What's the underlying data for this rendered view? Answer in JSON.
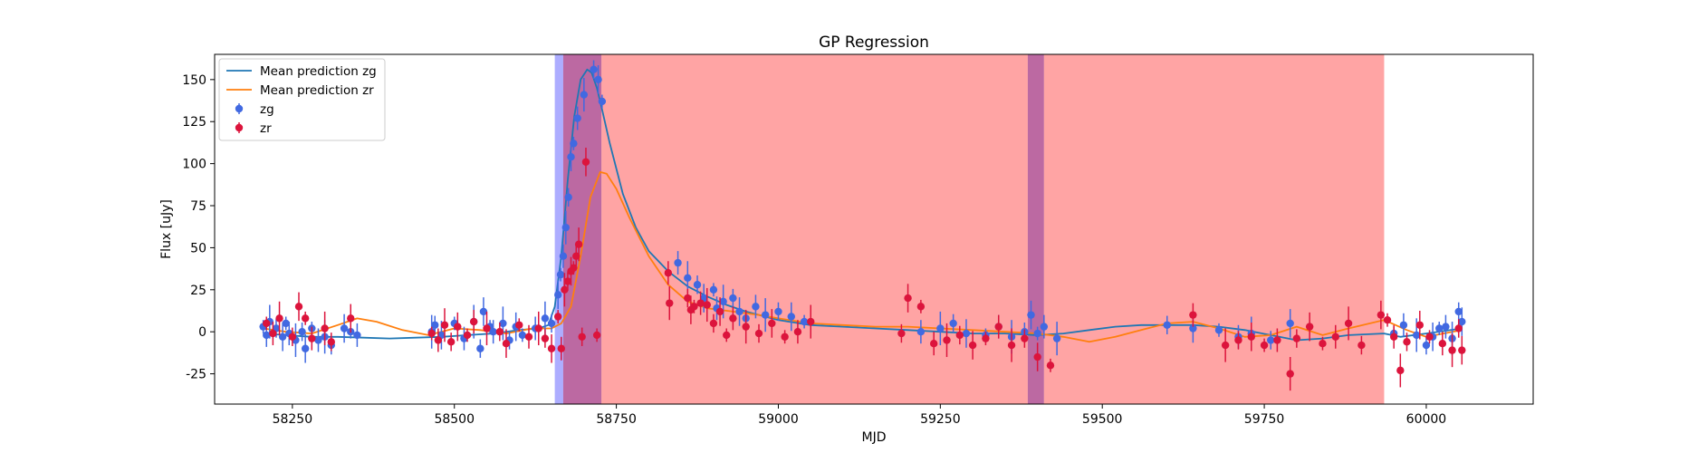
{
  "chart_data": {
    "type": "line",
    "title": "GP Regression",
    "xlabel": "MJD",
    "ylabel": "Flux [uJy]",
    "xlim": [
      58130,
      60165
    ],
    "ylim": [
      -43,
      165
    ],
    "xticks": [
      58250,
      58500,
      58750,
      59000,
      59250,
      59500,
      59750,
      60000
    ],
    "yticks": [
      -25,
      0,
      25,
      50,
      75,
      100,
      125,
      150
    ],
    "grid": false,
    "legend_position": "top-left",
    "shaded_regions": [
      {
        "x": [
          58655,
          58668
        ],
        "color": "#5b5bff",
        "alpha": 0.5
      },
      {
        "x": [
          58668,
          58727
        ],
        "color": "#a02a7a",
        "alpha": 0.7
      },
      {
        "x": [
          58727,
          59385
        ],
        "color": "#ff5a5a",
        "alpha": 0.55
      },
      {
        "x": [
          59385,
          59410
        ],
        "color": "#a02a7a",
        "alpha": 0.7
      },
      {
        "x": [
          59410,
          59935
        ],
        "color": "#ff5a5a",
        "alpha": 0.55
      }
    ],
    "series": [
      {
        "name": "Mean prediction zg",
        "kind": "line",
        "color": "#1f77b4",
        "x": [
          58205,
          58240,
          58280,
          58320,
          58360,
          58400,
          58440,
          58480,
          58520,
          58560,
          58600,
          58630,
          58645,
          58655,
          58665,
          58675,
          58685,
          58695,
          58705,
          58712,
          58720,
          58728,
          58740,
          58760,
          58780,
          58800,
          58830,
          58860,
          58890,
          58920,
          58950,
          58980,
          59000,
          59050,
          59100,
          59150,
          59200,
          59250,
          59300,
          59350,
          59400,
          59440,
          59480,
          59520,
          59560,
          59600,
          59640,
          59680,
          59720,
          59760,
          59800,
          59840,
          59880,
          59935,
          59960,
          60000,
          60055
        ],
        "y": [
          -1,
          -2,
          -3,
          -3,
          -3.5,
          -4,
          -3.5,
          -3,
          -2,
          -1,
          1,
          2,
          4,
          15,
          45,
          90,
          128,
          150,
          156,
          154,
          145,
          132,
          112,
          82,
          62,
          48,
          36,
          27,
          21,
          16,
          12,
          9,
          7,
          4,
          3,
          2,
          1,
          0,
          -1,
          -1,
          -2,
          -1,
          1,
          3,
          4,
          4,
          4,
          3,
          1,
          -2,
          -5,
          -4,
          -2,
          -1,
          -3,
          -1,
          2
        ]
      },
      {
        "name": "Mean prediction zr",
        "kind": "line",
        "color": "#ff7f0e",
        "x": [
          58205,
          58240,
          58280,
          58320,
          58350,
          58380,
          58420,
          58460,
          58500,
          58540,
          58580,
          58620,
          58650,
          58665,
          58680,
          58695,
          58710,
          58725,
          58735,
          58750,
          58770,
          58800,
          58830,
          58860,
          58890,
          58930,
          58970,
          59000,
          59050,
          59100,
          59150,
          59200,
          59250,
          59300,
          59350,
          59400,
          59440,
          59480,
          59520,
          59560,
          59600,
          59640,
          59680,
          59720,
          59760,
          59800,
          59840,
          59880,
          59935,
          59970,
          60000,
          60055
        ],
        "y": [
          2,
          0,
          -1,
          4,
          8,
          6,
          1,
          -2,
          2,
          1,
          -1,
          2,
          2,
          5,
          15,
          45,
          80,
          95,
          94,
          85,
          68,
          45,
          28,
          18,
          14,
          12,
          10,
          8,
          5,
          4,
          3,
          3,
          2,
          1,
          0,
          -1,
          -3,
          -6,
          -3,
          1,
          5,
          6,
          2,
          -3,
          -2,
          3,
          -2,
          2,
          7,
          1,
          -3,
          1
        ]
      },
      {
        "name": "zg",
        "kind": "errorbar",
        "color": "#4169e1",
        "x": [
          58205,
          58210,
          58215,
          58225,
          58235,
          58240,
          58245,
          58255,
          58265,
          58270,
          58280,
          58290,
          58300,
          58310,
          58330,
          58340,
          58350,
          58465,
          58470,
          58480,
          58500,
          58515,
          58530,
          58540,
          58545,
          58555,
          58560,
          58575,
          58585,
          58595,
          58605,
          58625,
          58640,
          58650,
          58660,
          58664,
          58668,
          58672,
          58676,
          58680,
          58684,
          58690,
          58700,
          58715,
          58722,
          58728,
          58845,
          58860,
          58875,
          58885,
          58900,
          58905,
          58915,
          58930,
          58940,
          58950,
          58965,
          58980,
          59000,
          59020,
          59040,
          59220,
          59250,
          59270,
          59290,
          59320,
          59340,
          59360,
          59380,
          59390,
          59400,
          59410,
          59430,
          59600,
          59640,
          59680,
          59710,
          59730,
          59760,
          59790,
          59950,
          59965,
          59985,
          60000,
          60010,
          60020,
          60030,
          60040,
          60050,
          60055
        ],
        "y": [
          3,
          -2,
          6,
          2,
          -3,
          5,
          -1,
          -5,
          0,
          -10,
          2,
          -5,
          -3,
          -8,
          2,
          0,
          -2,
          0,
          4,
          -2,
          5,
          -4,
          6,
          -10,
          12,
          3,
          0,
          5,
          -5,
          3,
          -2,
          2,
          8,
          5,
          22,
          34,
          45,
          62,
          80,
          104,
          112,
          127,
          141,
          156,
          150,
          137,
          41,
          32,
          28,
          20,
          25,
          14,
          18,
          20,
          12,
          8,
          15,
          10,
          12,
          9,
          6,
          0,
          2,
          5,
          -1,
          -2,
          3,
          -3,
          0,
          10,
          -1,
          3,
          -4,
          4,
          2,
          1,
          -3,
          -1,
          -5,
          5,
          -1,
          4,
          -2,
          -8,
          -3,
          2,
          3,
          -4,
          12,
          6
        ]
      },
      {
        "name": "zr",
        "kind": "errorbar",
        "color": "#dc143c",
        "x": [
          58210,
          58220,
          58230,
          58250,
          58260,
          58270,
          58280,
          58300,
          58310,
          58340,
          58465,
          58475,
          58485,
          58495,
          58505,
          58520,
          58530,
          58550,
          58570,
          58580,
          58600,
          58615,
          58630,
          58640,
          58650,
          58660,
          58665,
          58670,
          58675,
          58680,
          58684,
          58688,
          58692,
          58697,
          58703,
          58720,
          58830,
          58832,
          58860,
          58865,
          58870,
          58880,
          58890,
          58900,
          58910,
          58920,
          58930,
          58950,
          58970,
          58990,
          59010,
          59030,
          59050,
          59190,
          59200,
          59220,
          59240,
          59260,
          59280,
          59300,
          59320,
          59340,
          59360,
          59380,
          59400,
          59420,
          59640,
          59690,
          59710,
          59730,
          59750,
          59770,
          59790,
          59800,
          59820,
          59840,
          59860,
          59880,
          59900,
          59930,
          59940,
          59950,
          59960,
          59970,
          59990,
          60005,
          60025,
          60040,
          60050,
          60055
        ],
        "y": [
          5,
          -1,
          8,
          -3,
          15,
          8,
          -4,
          2,
          -6,
          8,
          -1,
          -5,
          4,
          -6,
          3,
          -2,
          6,
          2,
          0,
          -7,
          4,
          -3,
          2,
          -4,
          -10,
          9,
          -10,
          25,
          30,
          36,
          38,
          45,
          52,
          -3,
          101,
          -2,
          35,
          17,
          20,
          13,
          15,
          17,
          16,
          5,
          12,
          -2,
          8,
          3,
          -1,
          5,
          -3,
          0,
          6,
          -1,
          20,
          15,
          -7,
          -5,
          -2,
          -8,
          -4,
          3,
          -8,
          -4,
          -15,
          -20,
          10,
          -8,
          -5,
          -3,
          -8,
          -5,
          -25,
          -4,
          3,
          -7,
          -3,
          5,
          -8,
          10,
          7,
          -3,
          -23,
          -6,
          4,
          -3,
          -7,
          -11,
          2,
          -11
        ]
      }
    ]
  }
}
